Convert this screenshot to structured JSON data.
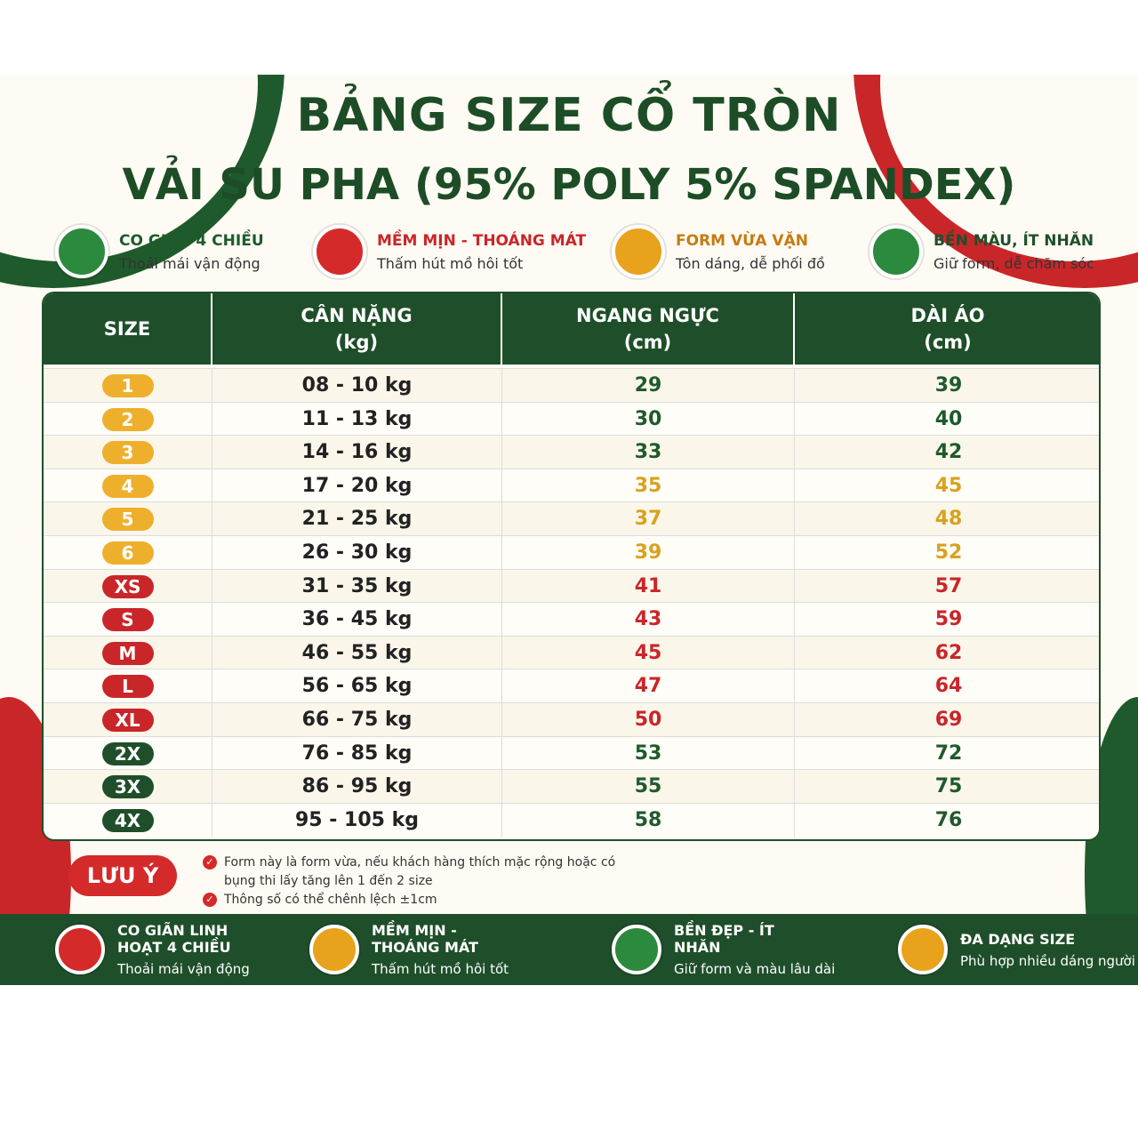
{
  "header": {
    "title": "BẢNG SIZE CỔ TRÒN",
    "subtitle": "VẢI SU PHA (95% POLY 5% SPANDEX)"
  },
  "features": [
    {
      "title": "CO GIÃN 4 CHIỀU",
      "text": "Thoải mái vận động"
    },
    {
      "title": "MỀM MỊN - THOÁNG MÁT",
      "text": "Thấm hút mồ hôi tốt"
    },
    {
      "title": "FORM VỪA VẶN",
      "text": "Tôn dáng, dễ phối đồ"
    },
    {
      "title": "BỀN MÀU, ÍT NHĂN",
      "text": "Giữ form, dễ chăm sóc"
    }
  ],
  "table": {
    "columns": [
      {
        "title": "SIZE"
      },
      {
        "title": "CÂN NẶNG",
        "unit": "(kg)"
      },
      {
        "title": "NGANG NGỰC",
        "unit": "(cm)"
      },
      {
        "title": "DÀI ÁO",
        "unit": "(cm)"
      }
    ],
    "rows": [
      [
        "1",
        "08 - 10 kg",
        29,
        39
      ],
      [
        "2",
        "11 - 13 kg",
        30,
        40
      ],
      [
        "3",
        "14 - 16 kg",
        33,
        42
      ],
      [
        "4",
        "17 - 20 kg",
        35,
        45
      ],
      [
        "5",
        "21 - 25 kg",
        37,
        48
      ],
      [
        "6",
        "26 - 30 kg",
        39,
        52
      ],
      [
        "XS",
        "31 - 35 kg",
        41,
        57
      ],
      [
        "S",
        "36 - 45 kg",
        43,
        59
      ],
      [
        "M",
        "46 - 55 kg",
        45,
        62
      ],
      [
        "L",
        "56 - 65 kg",
        47,
        64
      ],
      [
        "XL",
        "66 - 75 kg",
        50,
        69
      ],
      [
        "2X",
        "76 - 85 kg",
        53,
        72
      ],
      [
        "3X",
        "86 - 95 kg",
        55,
        75
      ],
      [
        "4X",
        "95 - 105 kg",
        58,
        76
      ]
    ]
  },
  "note": {
    "label": "LƯU Ý",
    "items": [
      "Form này là form vừa, nếu khách hàng thích mặc rộng hoặc có bụng thi lấy tăng lên 1 đến 2 size",
      "Thông số có thể chênh lệch ±1cm"
    ]
  },
  "footer": [
    {
      "title": "CO GIÃN LINH HOẠT 4 CHIỀU",
      "text": "Thoải mái vận động"
    },
    {
      "title": "MỀM MỊN - THOÁNG MÁT",
      "text": "Thấm hút mồ hôi tốt"
    },
    {
      "title": "BỀN ĐẸP - ÍT NHĂN",
      "text": "Giữ form và màu lâu dài"
    },
    {
      "title": "ĐA DẠNG SIZE",
      "text": "Phù hợp nhiều dáng người"
    }
  ]
}
